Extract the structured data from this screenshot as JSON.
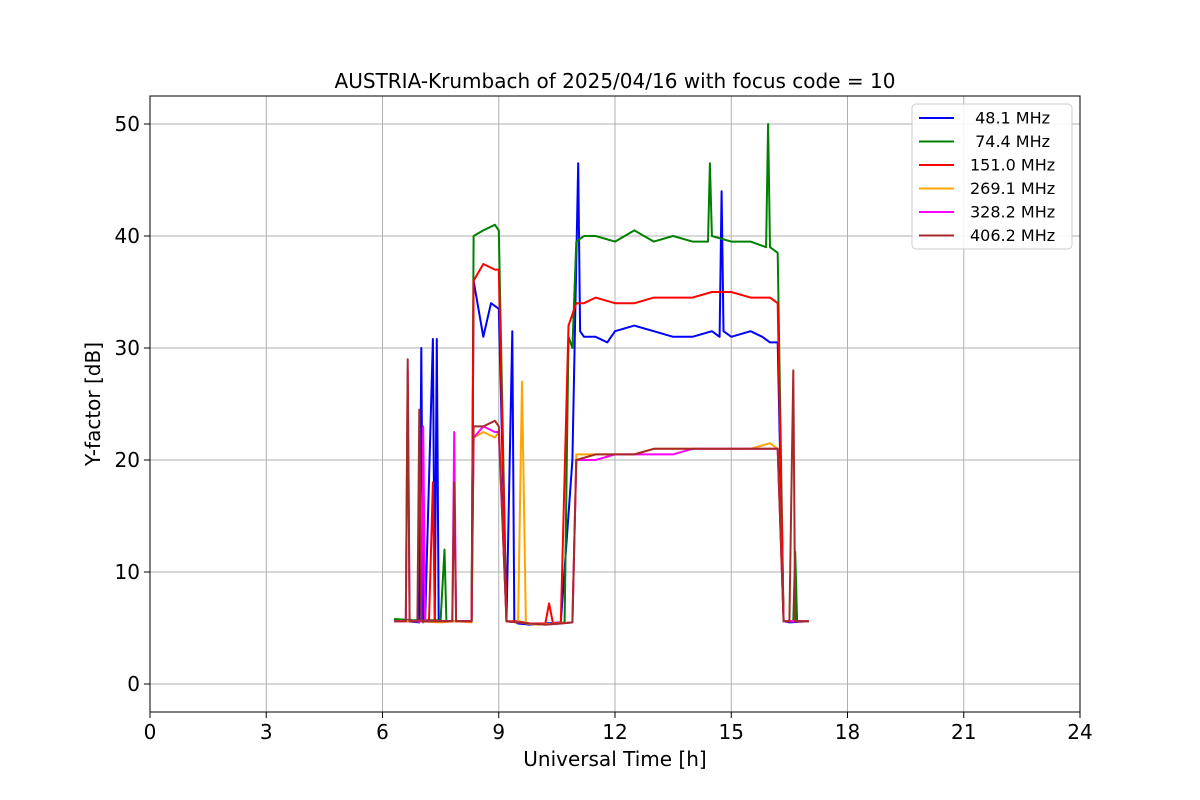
{
  "chart_data": {
    "type": "line",
    "title": "AUSTRIA-Krumbach of 2025/04/16 with focus code = 10",
    "xlabel": "Universal Time [h]",
    "ylabel": "Y-factor [dB]",
    "xlim": [
      0,
      24
    ],
    "ylim": [
      -2.5,
      52.5
    ],
    "xticks": [
      0,
      3,
      6,
      9,
      12,
      15,
      18,
      21,
      24
    ],
    "yticks": [
      0,
      10,
      20,
      30,
      40,
      50
    ],
    "grid": true,
    "legend_position": "top-right",
    "series": [
      {
        "name": " 48.1 MHz",
        "color": "#0000ff",
        "x": [
          6.3,
          6.6,
          6.95,
          7.0,
          7.05,
          7.1,
          7.3,
          7.35,
          7.4,
          7.45,
          7.8,
          8.3,
          8.35,
          8.6,
          8.8,
          9.0,
          9.2,
          9.35,
          9.4,
          9.45,
          9.5,
          9.8,
          10.2,
          10.6,
          10.9,
          11.05,
          11.1,
          11.2,
          11.5,
          11.8,
          12.0,
          12.5,
          13.0,
          13.5,
          14.0,
          14.5,
          14.7,
          14.75,
          14.8,
          15.0,
          15.5,
          15.8,
          16.0,
          16.2,
          16.35,
          16.5,
          17.0
        ],
        "y": [
          5.6,
          5.6,
          5.5,
          30.0,
          5.5,
          5.6,
          30.8,
          5.6,
          30.8,
          5.6,
          5.6,
          5.6,
          36.0,
          31.0,
          34.0,
          33.5,
          5.6,
          31.5,
          5.6,
          5.5,
          5.4,
          5.3,
          5.4,
          5.5,
          20.0,
          46.5,
          31.5,
          31.0,
          31.0,
          30.5,
          31.5,
          32.0,
          31.5,
          31.0,
          31.0,
          31.5,
          31.0,
          44.0,
          31.5,
          31.0,
          31.5,
          31.0,
          30.5,
          30.5,
          5.6,
          5.5,
          5.6
        ]
      },
      {
        "name": " 74.4 MHz",
        "color": "#008000",
        "x": [
          6.3,
          6.8,
          7.5,
          7.6,
          7.65,
          8.3,
          8.35,
          8.6,
          8.9,
          9.0,
          9.2,
          9.5,
          9.7,
          10.0,
          10.5,
          10.7,
          10.8,
          10.9,
          11.0,
          11.2,
          11.5,
          12.0,
          12.5,
          13.0,
          13.5,
          14.0,
          14.4,
          14.45,
          14.5,
          15.0,
          15.5,
          15.9,
          15.95,
          16.0,
          16.2,
          16.35,
          16.5,
          16.6,
          16.65,
          16.7,
          17.0
        ],
        "y": [
          5.8,
          5.7,
          5.7,
          12.0,
          5.6,
          5.6,
          40.0,
          40.5,
          41.0,
          40.5,
          5.6,
          5.5,
          5.4,
          5.3,
          5.4,
          5.5,
          31.0,
          30.0,
          39.5,
          40.0,
          40.0,
          39.5,
          40.5,
          39.5,
          40.0,
          39.5,
          39.5,
          46.5,
          40.0,
          39.5,
          39.5,
          39.0,
          50.0,
          39.0,
          38.5,
          5.6,
          5.6,
          5.6,
          11.8,
          5.6,
          5.6
        ]
      },
      {
        "name": "151.0 MHz",
        "color": "#ff0000",
        "x": [
          6.3,
          6.8,
          7.2,
          7.3,
          7.35,
          7.8,
          8.3,
          8.35,
          8.6,
          8.9,
          9.0,
          9.2,
          9.5,
          9.8,
          10.2,
          10.3,
          10.4,
          10.6,
          10.8,
          11.0,
          11.2,
          11.5,
          12.0,
          12.5,
          13.0,
          13.5,
          14.0,
          14.5,
          15.0,
          15.5,
          16.0,
          16.2,
          16.35,
          16.5,
          17.0
        ],
        "y": [
          5.6,
          5.6,
          5.6,
          18.0,
          5.6,
          5.6,
          5.6,
          36.0,
          37.5,
          37.0,
          37.0,
          5.6,
          5.6,
          5.4,
          5.4,
          7.2,
          5.4,
          5.5,
          32.0,
          34.0,
          34.0,
          34.5,
          34.0,
          34.0,
          34.5,
          34.5,
          34.5,
          35.0,
          35.0,
          34.5,
          34.5,
          34.0,
          5.6,
          5.6,
          5.6
        ]
      },
      {
        "name": "269.1 MHz",
        "color": "#ffa500",
        "x": [
          6.3,
          6.8,
          7.5,
          7.9,
          8.3,
          8.35,
          8.6,
          8.9,
          9.0,
          9.2,
          9.5,
          9.6,
          9.65,
          9.7,
          10.0,
          10.5,
          10.9,
          11.0,
          11.5,
          12.0,
          12.5,
          13.0,
          13.5,
          14.0,
          14.5,
          15.0,
          15.5,
          16.0,
          16.2,
          16.35,
          16.5,
          17.0
        ],
        "y": [
          5.6,
          5.6,
          5.5,
          5.6,
          5.5,
          22.0,
          22.5,
          22.0,
          22.5,
          5.6,
          5.5,
          27.0,
          16.5,
          5.4,
          5.3,
          5.4,
          5.5,
          20.5,
          20.5,
          20.5,
          20.5,
          21.0,
          21.0,
          21.0,
          21.0,
          21.0,
          21.0,
          21.5,
          21.0,
          5.6,
          5.6,
          5.6
        ]
      },
      {
        "name": "328.2 MHz",
        "color": "#ff00ff",
        "x": [
          6.3,
          6.6,
          6.65,
          6.7,
          7.0,
          7.05,
          7.1,
          7.8,
          7.85,
          7.9,
          8.3,
          8.35,
          8.6,
          8.9,
          9.0,
          9.2,
          9.5,
          9.8,
          10.2,
          10.6,
          10.9,
          11.0,
          11.5,
          12.0,
          12.5,
          13.0,
          13.5,
          14.0,
          14.5,
          15.0,
          15.5,
          16.0,
          16.2,
          16.35,
          16.5,
          17.0
        ],
        "y": [
          5.6,
          5.6,
          28.0,
          5.6,
          5.6,
          23.0,
          5.6,
          5.6,
          22.5,
          5.6,
          5.6,
          22.0,
          23.0,
          22.5,
          22.5,
          5.6,
          5.5,
          5.4,
          5.3,
          5.4,
          5.5,
          20.0,
          20.0,
          20.5,
          20.5,
          20.5,
          20.5,
          21.0,
          21.0,
          21.0,
          21.0,
          21.0,
          21.0,
          5.6,
          5.6,
          5.6
        ]
      },
      {
        "name": "406.2 MHz",
        "color": "#a52a2a",
        "x": [
          6.3,
          6.6,
          6.65,
          6.7,
          6.9,
          6.95,
          7.0,
          7.8,
          7.85,
          7.9,
          8.3,
          8.35,
          8.6,
          8.9,
          9.0,
          9.2,
          9.5,
          9.8,
          10.2,
          10.6,
          10.9,
          11.0,
          11.5,
          12.0,
          12.5,
          13.0,
          13.5,
          14.0,
          14.5,
          15.0,
          15.5,
          16.0,
          16.2,
          16.35,
          16.5,
          16.6,
          16.65,
          16.7,
          17.0
        ],
        "y": [
          5.6,
          5.6,
          29.0,
          5.6,
          5.6,
          24.5,
          5.6,
          5.6,
          18.0,
          5.6,
          5.6,
          23.0,
          23.0,
          23.5,
          23.0,
          5.6,
          5.5,
          5.4,
          5.3,
          5.4,
          5.5,
          20.0,
          20.5,
          20.5,
          20.5,
          21.0,
          21.0,
          21.0,
          21.0,
          21.0,
          21.0,
          21.0,
          21.0,
          5.6,
          5.6,
          28.0,
          5.6,
          5.6,
          5.6
        ]
      }
    ]
  }
}
